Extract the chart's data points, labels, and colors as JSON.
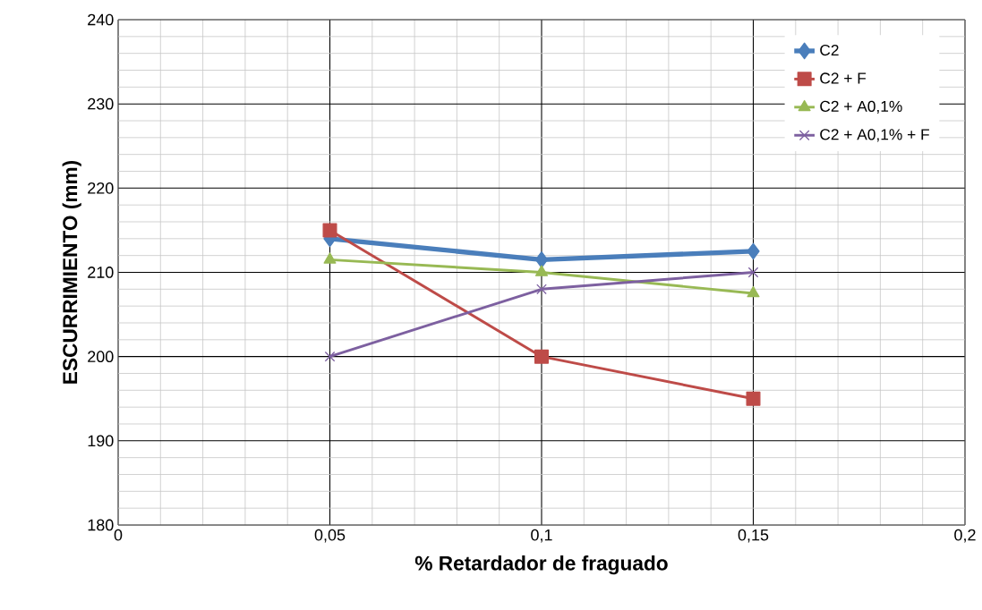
{
  "chart_data": {
    "type": "line",
    "xlabel": "% Retardador de fraguado",
    "ylabel": "ESCURRIMIENTO (mm)",
    "x": [
      0.05,
      0.1,
      0.15
    ],
    "series": [
      {
        "name": "C2",
        "color": "#4a7ebb",
        "marker": "diamond",
        "values": [
          214,
          211.5,
          212.5
        ]
      },
      {
        "name": "C2 + F",
        "color": "#be4b48",
        "marker": "square",
        "values": [
          215,
          200,
          195
        ]
      },
      {
        "name": "C2 + A0,1%",
        "color": "#98b954",
        "marker": "triangle",
        "values": [
          211.5,
          210,
          207.5
        ]
      },
      {
        "name": "C2 + A0,1% + F",
        "color": "#7d60a0",
        "marker": "cross",
        "values": [
          200,
          208,
          210
        ]
      }
    ],
    "xlim": [
      0,
      0.2
    ],
    "xticks": [
      0,
      {
        "value": 0.05,
        "label": "0,05"
      },
      {
        "value": 0.1,
        "label": "0,1"
      },
      {
        "value": 0.15,
        "label": "0,15"
      },
      {
        "value": 0.2,
        "label": "0,2"
      }
    ],
    "ylim": [
      180,
      240
    ],
    "yticks": [
      180,
      190,
      200,
      210,
      220,
      230,
      240
    ],
    "grid": true,
    "legend": "top right",
    "line_style": "solid"
  }
}
